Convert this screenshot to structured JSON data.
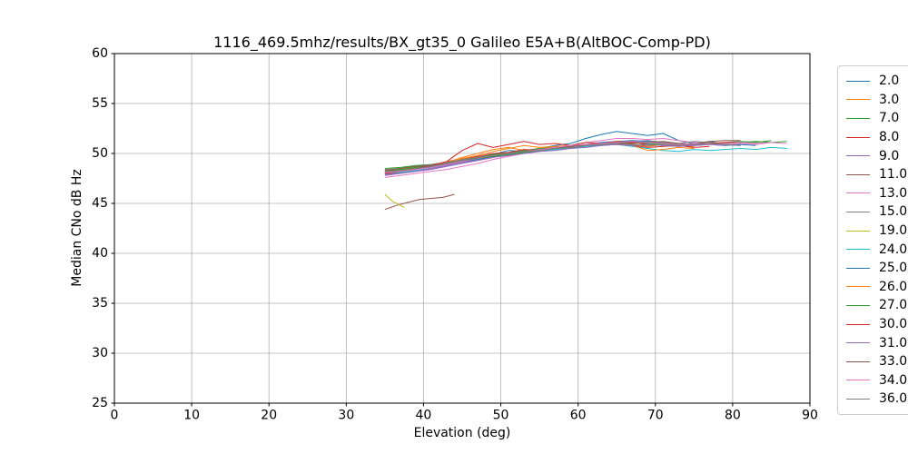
{
  "figure": {
    "title": "1116_469.5mhz/results/BX_gt35_0 Galileo E5A+B(AltBOC-Comp-PD)",
    "xlabel": "Elevation (deg)",
    "ylabel": "Median CNo dB Hz"
  },
  "chart_data": {
    "type": "line",
    "title": "1116_469.5mhz/results/BX_gt35_0 Galileo E5A+B(AltBOC-Comp-PD)",
    "xlabel": "Elevation (deg)",
    "ylabel": "Median CNo dB Hz",
    "xlim": [
      0,
      90
    ],
    "ylim": [
      25,
      60
    ],
    "xticks": [
      0,
      10,
      20,
      30,
      40,
      50,
      60,
      70,
      80,
      90
    ],
    "yticks": [
      25,
      30,
      35,
      40,
      45,
      50,
      55,
      60
    ],
    "grid": true,
    "grid_color": "#b0b0b0",
    "legend_position": "outside-right",
    "series": [
      {
        "name": "2.0",
        "color": "#1f77b4",
        "x0": 35,
        "dx": 2,
        "y": [
          48.0,
          48.2,
          48.4,
          48.6,
          48.9,
          49.2,
          49.5,
          49.9,
          50.3,
          50.2,
          50.5,
          50.8,
          51.0,
          51.5,
          51.9,
          52.2,
          52.0,
          51.8,
          52.0,
          51.3,
          51.0,
          51.2,
          50.9,
          50.8
        ]
      },
      {
        "name": "3.0",
        "color": "#ff7f0e",
        "x0": 35,
        "dx": 2,
        "y": [
          48.2,
          48.4,
          48.5,
          48.8,
          49.1,
          49.6,
          50.0,
          50.4,
          50.6,
          50.3,
          50.5,
          50.7,
          50.6,
          50.8,
          51.0,
          51.1,
          50.9,
          50.7,
          50.9,
          50.8,
          50.7
        ]
      },
      {
        "name": "7.0",
        "color": "#2ca02c",
        "x0": 35,
        "dx": 2,
        "y": [
          48.5,
          48.6,
          48.8,
          48.9,
          49.1,
          49.3,
          49.6,
          49.9,
          50.1,
          50.3,
          50.5,
          50.6,
          50.8,
          50.9,
          51.0,
          51.1,
          51.0,
          51.1,
          51.0,
          50.9,
          51.0,
          50.9,
          51.0,
          51.1,
          51.2,
          51.1,
          51.2
        ]
      },
      {
        "name": "8.0",
        "color": "#d62728",
        "x0": 35,
        "dx": 2,
        "y": [
          47.9,
          48.1,
          48.4,
          48.7,
          49.0,
          49.4,
          49.7,
          50.0,
          50.1,
          50.4,
          50.3,
          50.5,
          50.6,
          50.8,
          50.9,
          51.0,
          50.8,
          50.6,
          50.7,
          50.8,
          50.6,
          50.7
        ]
      },
      {
        "name": "9.0",
        "color": "#9467bd",
        "x0": 35,
        "dx": 2,
        "y": [
          47.8,
          48.0,
          48.2,
          48.4,
          48.7,
          49.0,
          49.3,
          49.6,
          49.9,
          50.1,
          50.3,
          50.4,
          50.6,
          50.7,
          50.9,
          51.0,
          51.1,
          51.2,
          51.1,
          51.0,
          50.9,
          51.0
        ]
      },
      {
        "name": "11.0",
        "color": "#8c564b",
        "x": [
          35,
          36.5,
          38,
          39.5,
          41,
          42.5,
          44
        ],
        "y": [
          44.4,
          44.8,
          45.1,
          45.4,
          45.5,
          45.6,
          45.9
        ]
      },
      {
        "name": "13.0",
        "color": "#e377c2",
        "x0": 35,
        "dx": 2,
        "y": [
          47.6,
          47.8,
          48.0,
          48.2,
          48.4,
          48.7,
          49.0,
          49.4,
          49.7,
          50.0,
          50.2,
          50.5,
          50.8,
          51.1,
          51.3,
          51.5,
          51.5,
          51.4,
          51.5,
          51.3,
          51.1,
          51.0,
          50.9,
          51.0,
          50.9,
          51.1,
          51.0
        ]
      },
      {
        "name": "15.0",
        "color": "#7f7f7f",
        "x0": 35,
        "dx": 2,
        "y": [
          48.4,
          48.5,
          48.7,
          48.9,
          49.1,
          49.4,
          49.6,
          49.8,
          50.0,
          50.2,
          50.4,
          50.5,
          50.7,
          50.8,
          51.0,
          51.1,
          51.2,
          51.3,
          51.1,
          51.0,
          51.2,
          51.1,
          51.0
        ]
      },
      {
        "name": "19.0",
        "color": "#bcbd22",
        "x": [
          35,
          36,
          37.5
        ],
        "y": [
          45.9,
          45.2,
          44.6
        ]
      },
      {
        "name": "24.0",
        "color": "#17becf",
        "x0": 35,
        "dx": 2,
        "y": [
          48.0,
          48.1,
          48.3,
          48.5,
          48.8,
          49.1,
          49.4,
          49.7,
          49.9,
          50.1,
          50.2,
          50.4,
          50.5,
          50.7,
          50.8,
          50.9,
          50.7,
          50.5,
          50.3,
          50.2,
          50.4,
          50.3,
          50.4,
          50.5,
          50.4,
          50.6,
          50.5
        ]
      },
      {
        "name": "25.0",
        "color": "#1f77b4",
        "x0": 35,
        "dx": 2,
        "y": [
          48.1,
          48.3,
          48.5,
          48.7,
          48.9,
          49.2,
          49.4,
          49.7,
          49.9,
          50.1,
          50.3,
          50.5,
          50.7,
          50.9,
          51.1,
          51.2,
          51.3,
          51.2,
          51.0,
          50.9,
          50.8,
          50.9,
          50.8,
          50.9,
          50.8
        ]
      },
      {
        "name": "26.0",
        "color": "#ff7f0e",
        "x0": 35,
        "dx": 2,
        "y": [
          48.3,
          48.4,
          48.6,
          48.8,
          49.2,
          49.5,
          49.8,
          50.2,
          50.5,
          50.8,
          50.6,
          50.7,
          50.8,
          50.9,
          51.0,
          50.9,
          50.8,
          50.3,
          50.4,
          50.6,
          50.5
        ]
      },
      {
        "name": "27.0",
        "color": "#2ca02c",
        "x0": 35,
        "dx": 2,
        "y": [
          48.2,
          48.4,
          48.6,
          48.8,
          49.0,
          49.3,
          49.5,
          49.7,
          49.9,
          50.1,
          50.3,
          50.5,
          50.6,
          50.8,
          50.9,
          51.0,
          51.1,
          51.0,
          50.9,
          51.0,
          50.9,
          51.0,
          51.1,
          51.2,
          51.1,
          51.3
        ]
      },
      {
        "name": "30.0",
        "color": "#d62728",
        "x0": 35,
        "dx": 2,
        "y": [
          48.0,
          48.2,
          48.5,
          48.8,
          49.2,
          50.3,
          51.0,
          50.6,
          50.9,
          51.2,
          50.9,
          51.0,
          50.8,
          51.1,
          51.0,
          51.2,
          51.1,
          50.9,
          50.8,
          50.7,
          50.9,
          51.0,
          51.1,
          51.1
        ]
      },
      {
        "name": "31.0",
        "color": "#9467bd",
        "x0": 35,
        "dx": 2,
        "y": [
          47.9,
          48.0,
          48.2,
          48.5,
          48.8,
          49.1,
          49.3,
          49.6,
          49.8,
          50.0,
          50.2,
          50.3,
          50.5,
          50.6,
          50.8,
          50.9,
          50.8,
          50.9,
          50.8,
          50.7,
          50.8,
          50.9,
          50.8
        ]
      },
      {
        "name": "33.0",
        "color": "#8c564b",
        "x0": 35,
        "dx": 2,
        "y": [
          48.3,
          48.5,
          48.7,
          48.8,
          49.0,
          49.2,
          49.5,
          49.8,
          50.0,
          50.2,
          50.4,
          50.6,
          50.7,
          50.9,
          51.0,
          51.1,
          51.0,
          51.1,
          51.2,
          51.0,
          50.9,
          51.2,
          51.3,
          51.3
        ]
      },
      {
        "name": "34.0",
        "color": "#e377c2",
        "x0": 35,
        "dx": 2,
        "y": [
          48.1,
          48.2,
          48.4,
          48.6,
          48.9,
          49.2,
          49.5,
          49.8,
          50.0,
          50.2,
          50.4,
          50.6,
          50.8,
          50.9,
          51.0,
          51.1,
          51.2,
          51.1,
          51.0,
          50.9,
          51.0,
          50.9,
          51.0,
          51.1,
          51.0,
          51.1
        ]
      },
      {
        "name": "36.0",
        "color": "#7f7f7f",
        "x0": 35,
        "dx": 2,
        "y": [
          48.2,
          48.3,
          48.5,
          48.7,
          49.0,
          49.3,
          49.5,
          49.8,
          50.0,
          50.2,
          50.3,
          50.5,
          50.6,
          50.8,
          50.9,
          51.0,
          50.9,
          50.8,
          50.9,
          50.8,
          50.9,
          51.0,
          50.9,
          50.8
        ]
      }
    ]
  }
}
